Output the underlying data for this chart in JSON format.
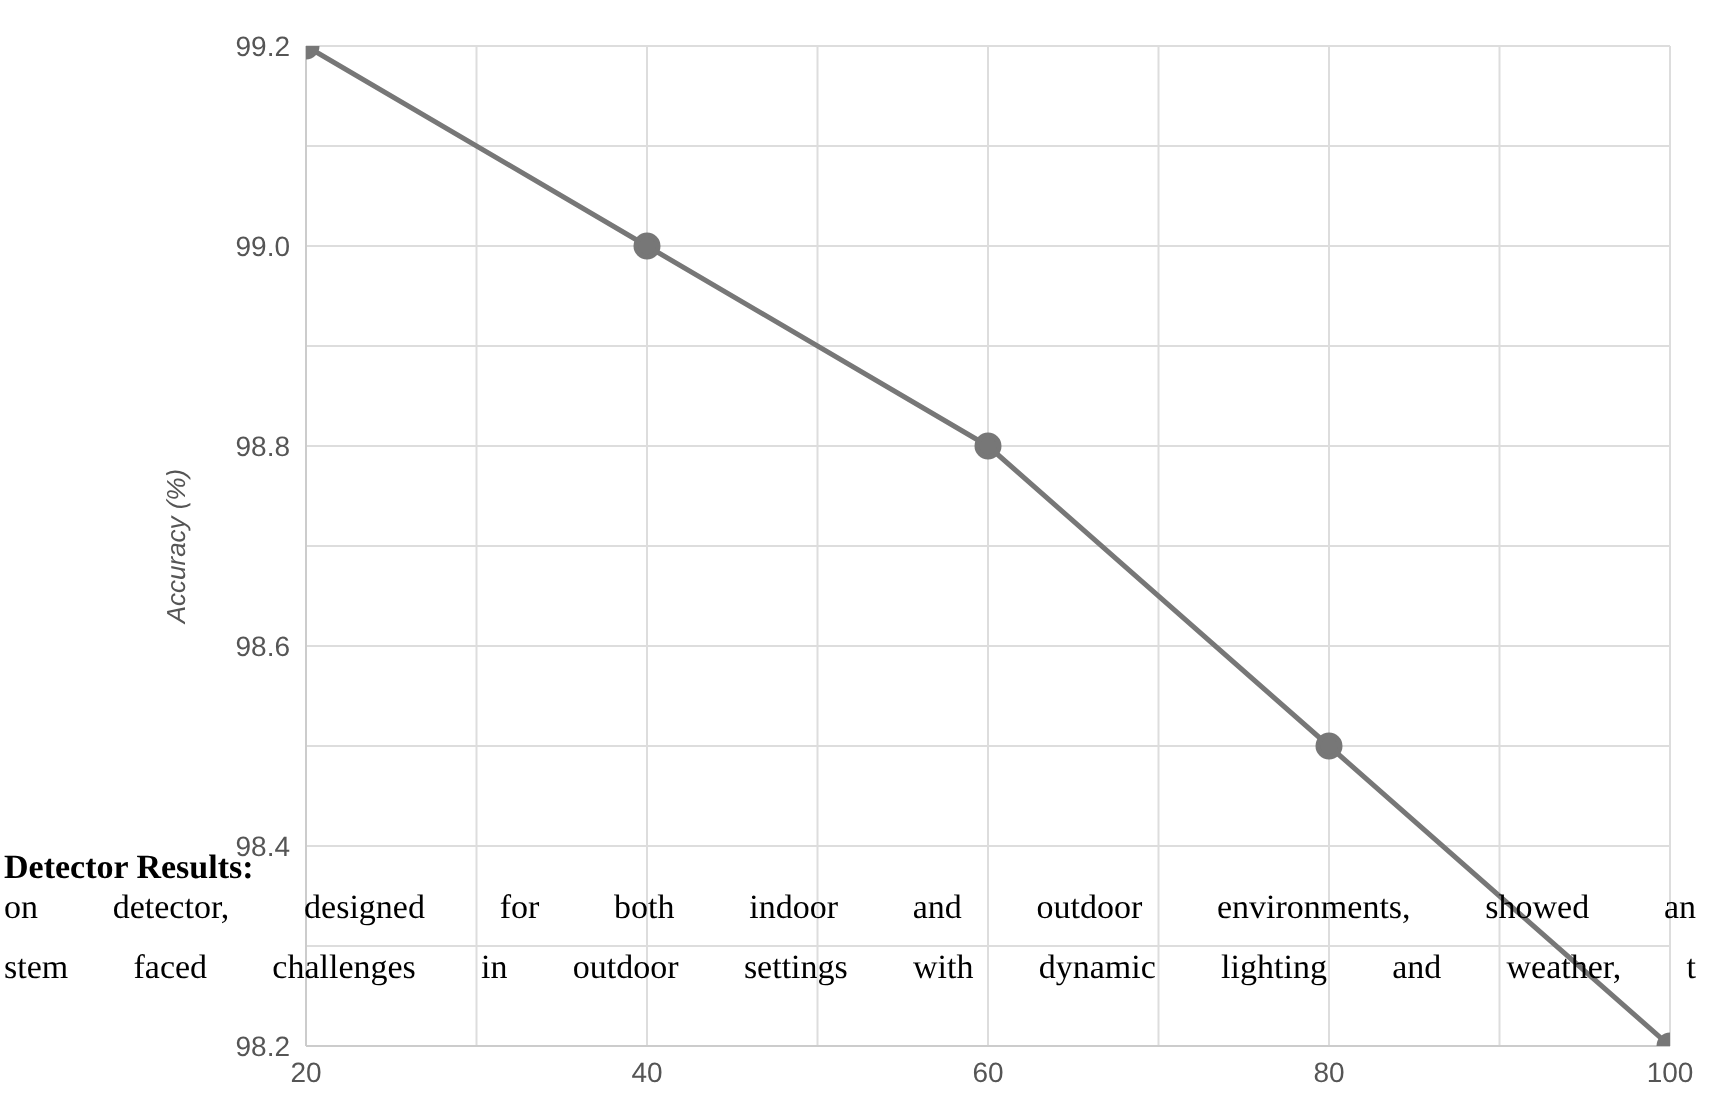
{
  "chart_data": {
    "type": "line",
    "ylabel": "Accuracy (%)",
    "x": [
      20,
      40,
      60,
      80,
      100
    ],
    "series": [
      {
        "color": "#777777",
        "values": [
          99.2,
          99.0,
          98.8,
          98.5,
          98.2
        ]
      }
    ],
    "xlim": [
      20,
      100
    ],
    "xticks": [
      20,
      {
        "value": 30,
        "label": null
      },
      40,
      {
        "value": 50,
        "label": null
      },
      60,
      {
        "value": 70,
        "label": null
      },
      80,
      {
        "value": 90,
        "label": null
      },
      100
    ],
    "ylim": [
      98.2,
      99.2
    ],
    "yticks": [
      98.2,
      {
        "value": 98.3,
        "label": null
      },
      98.4,
      {
        "value": 98.5,
        "label": null
      },
      98.6,
      {
        "value": 98.7,
        "label": null
      },
      98.8,
      {
        "value": 98.9,
        "label": null
      },
      {
        "value": 99,
        "label": "99.0"
      },
      {
        "value": 99.1,
        "label": null
      },
      99.2
    ],
    "grid": true,
    "marker": "circle",
    "line_style": "solid",
    "annotations": [
      "Detector Results:",
      "on detector, designed for both indoor and outdoor environments, showed an",
      "stem faced challenges in outdoor settings with dynamic lighting and weather, t"
    ]
  }
}
